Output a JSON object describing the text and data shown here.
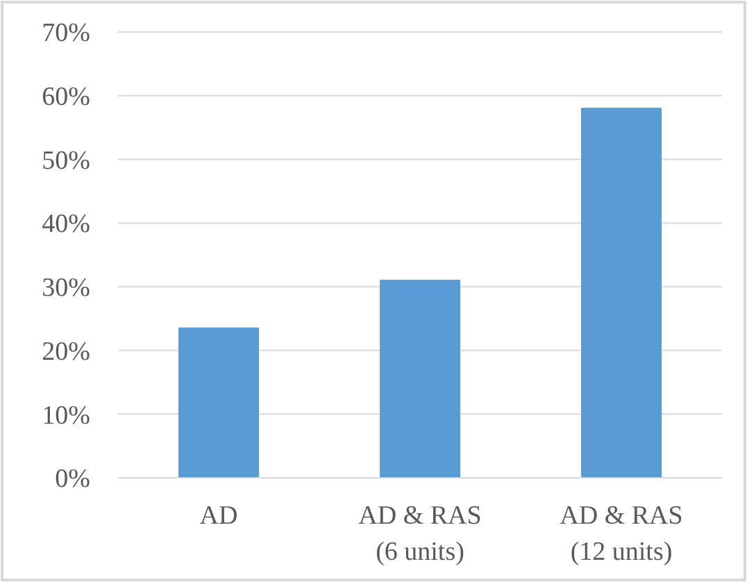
{
  "chart_data": {
    "type": "bar",
    "categories": [
      "AD",
      "AD & RAS\n(6 units)",
      "AD & RAS\n(12 units)"
    ],
    "values": [
      23.6,
      31.1,
      58.1
    ],
    "color": "#5b9bd5",
    "ylim": [
      0,
      70
    ],
    "yticks": [
      {
        "value": 0,
        "label": "0%"
      },
      {
        "value": 10,
        "label": "10%"
      },
      {
        "value": 20,
        "label": "20%"
      },
      {
        "value": 30,
        "label": "30%"
      },
      {
        "value": 40,
        "label": "40%"
      },
      {
        "value": 50,
        "label": "50%"
      },
      {
        "value": 60,
        "label": "60%"
      },
      {
        "value": 70,
        "label": "70%"
      }
    ],
    "grid": "y"
  }
}
